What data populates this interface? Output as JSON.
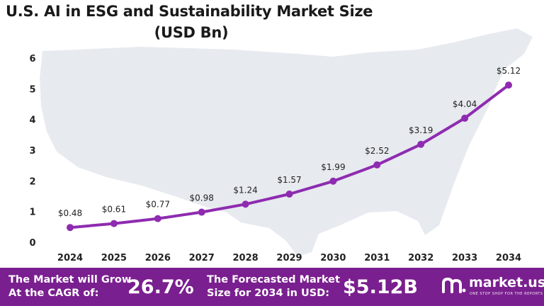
{
  "chart_data": {
    "type": "line",
    "title_line1": "U.S. AI in ESG and Sustainability Market Size",
    "title_line2": "(USD Bn)",
    "categories": [
      "2024",
      "2025",
      "2026",
      "2027",
      "2028",
      "2029",
      "2030",
      "2031",
      "2032",
      "2033",
      "2034"
    ],
    "values": [
      0.48,
      0.61,
      0.77,
      0.98,
      1.24,
      1.57,
      1.99,
      2.52,
      3.19,
      4.04,
      5.12
    ],
    "data_labels": [
      "$0.48",
      "$0.61",
      "$0.77",
      "$0.98",
      "$1.24",
      "$1.57",
      "$1.99",
      "$2.52",
      "$3.19",
      "$4.04",
      "$5.12"
    ],
    "y_ticks": [
      "0",
      "1",
      "2",
      "3",
      "4",
      "5",
      "6"
    ],
    "ylim": [
      0,
      6
    ],
    "grid": false,
    "legend": "none",
    "line_color": "#8e2bb0"
  },
  "footer": {
    "cagr_text_1": "The Market will Grow",
    "cagr_text_2": "At the CAGR of:",
    "cagr_value": "26.7%",
    "forecast_text_1": "The Forecasted Market",
    "forecast_text_2": "Size for 2034 in USD:",
    "forecast_value": "$5.12B",
    "brand_name": "market.us",
    "brand_tagline": "ONE STOP SHOP FOR THE REPORTS",
    "background_color": "#7a1f8f"
  }
}
